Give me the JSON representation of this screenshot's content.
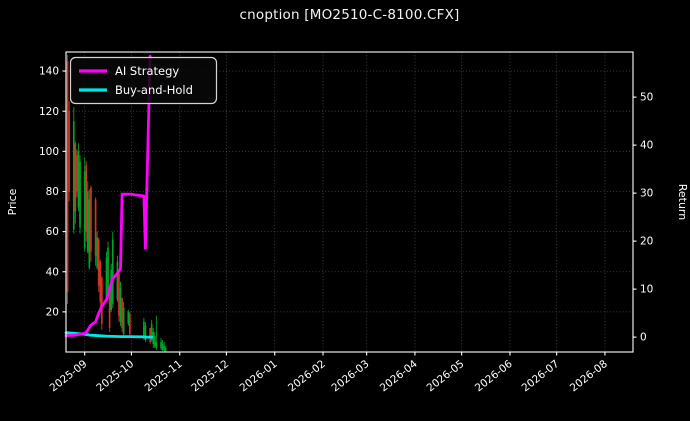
{
  "title": "cnoption [MO2510-C-8100.CFX]",
  "legend": {
    "items": [
      {
        "label": "AI Strategy",
        "color": "#ff00ff"
      },
      {
        "label": "Buy-and-Hold",
        "color": "#00e5e5"
      }
    ]
  },
  "colors": {
    "background": "#000000",
    "foreground": "#ffffff",
    "grid": "#4a4a4a",
    "candle_up": "#00a42b",
    "candle_down": "#cd3626",
    "ai_strategy": "#ff00ff",
    "buy_and_hold": "#00e5e5",
    "legend_border": "#d4d4d4"
  },
  "chart_data": {
    "type": "mixed-candlestick-line",
    "title": "cnoption [MO2510-C-8100.CFX]",
    "x_axis": {
      "range": [
        "2025-08-20",
        "2026-08-19"
      ],
      "tick_labels": [
        "2025-09",
        "2025-10",
        "2025-11",
        "2025-12",
        "2026-01",
        "2026-02",
        "2026-03",
        "2026-04",
        "2026-05",
        "2026-06",
        "2026-07",
        "2026-08"
      ],
      "tick_dates": [
        "2025-09-01",
        "2025-10-01",
        "2025-11-01",
        "2025-12-01",
        "2026-01-01",
        "2026-02-01",
        "2026-03-01",
        "2026-04-01",
        "2026-05-01",
        "2026-06-01",
        "2026-07-01",
        "2026-08-01"
      ],
      "grid": true
    },
    "y_axis_left": {
      "label": "Price",
      "ticks": [
        20,
        40,
        60,
        80,
        100,
        120,
        140
      ],
      "range": [
        0,
        149.5
      ],
      "grid": true
    },
    "y_axis_right": {
      "label": "Return",
      "ticks": [
        0,
        10,
        20,
        30,
        40,
        50
      ],
      "range": [
        -3.1,
        59.4
      ],
      "grid": false
    },
    "legend_position": "upper left",
    "candles_ohlc": [
      [
        "2025-08-21",
        145,
        148,
        24,
        30
      ],
      [
        "2025-08-22",
        120,
        125,
        75,
        80
      ],
      [
        "2025-08-25",
        61,
        122,
        59,
        115
      ],
      [
        "2025-08-26",
        104,
        105,
        64,
        70
      ],
      [
        "2025-08-27",
        98,
        101,
        77,
        80
      ],
      [
        "2025-08-28",
        72,
        104,
        70,
        100
      ],
      [
        "2025-08-29",
        62,
        98,
        59,
        95
      ],
      [
        "2025-09-01",
        52,
        97,
        50,
        90
      ],
      [
        "2025-09-02",
        93,
        95,
        55,
        60
      ],
      [
        "2025-09-03",
        50,
        85,
        49,
        80
      ],
      [
        "2025-09-04",
        42,
        81,
        41,
        76
      ],
      [
        "2025-09-05",
        82,
        83,
        45,
        50
      ],
      [
        "2025-09-08",
        76,
        77,
        43,
        48
      ],
      [
        "2025-09-09",
        42,
        60,
        41,
        57
      ],
      [
        "2025-09-10",
        56,
        57,
        30,
        33
      ],
      [
        "2025-09-11",
        45,
        46,
        22,
        25
      ],
      [
        "2025-09-12",
        37,
        38,
        11,
        14
      ],
      [
        "2025-09-15",
        26,
        50,
        25,
        47
      ],
      [
        "2025-09-16",
        29,
        55,
        27,
        52
      ],
      [
        "2025-09-17",
        30,
        31,
        10,
        12
      ],
      [
        "2025-09-18",
        21,
        44,
        20,
        41
      ],
      [
        "2025-09-19",
        24,
        60,
        22,
        56
      ],
      [
        "2025-09-22",
        26,
        48,
        25,
        45
      ],
      [
        "2025-09-23",
        39,
        40,
        15,
        18
      ],
      [
        "2025-09-24",
        15,
        35,
        13,
        32
      ],
      [
        "2025-09-25",
        27,
        27,
        10,
        12
      ],
      [
        "2025-09-26",
        9,
        25,
        7,
        22
      ],
      [
        "2025-09-29",
        14,
        21,
        13,
        20
      ],
      [
        "2025-09-30",
        19,
        20,
        7,
        9
      ],
      [
        "2025-10-09",
        7,
        17,
        6,
        15
      ],
      [
        "2025-10-10",
        6,
        15,
        5,
        13
      ],
      [
        "2025-10-13",
        12,
        12,
        4,
        5
      ],
      [
        "2025-10-14",
        6,
        16,
        5,
        14
      ],
      [
        "2025-10-15",
        4,
        12,
        2,
        10
      ],
      [
        "2025-10-16",
        3,
        10,
        2,
        8
      ],
      [
        "2025-10-17",
        2,
        18,
        1,
        5
      ],
      [
        "2025-10-20",
        2,
        7,
        1,
        5
      ],
      [
        "2025-10-21",
        1,
        6,
        0.5,
        4
      ],
      [
        "2025-10-22",
        1,
        5,
        0.3,
        3
      ],
      [
        "2025-10-23",
        0.5,
        3,
        0.2,
        2
      ]
    ],
    "series": [
      {
        "name": "AI Strategy",
        "axis": "return",
        "points": [
          [
            "2025-08-20",
            0.3
          ],
          [
            "2025-08-21",
            0.3
          ],
          [
            "2025-08-22",
            0.35
          ],
          [
            "2025-08-25",
            0.4
          ],
          [
            "2025-08-26",
            0.45
          ],
          [
            "2025-08-27",
            0.5
          ],
          [
            "2025-08-28",
            0.55
          ],
          [
            "2025-08-29",
            0.6
          ],
          [
            "2025-09-01",
            0.8
          ],
          [
            "2025-09-02",
            1.0
          ],
          [
            "2025-09-03",
            1.5
          ],
          [
            "2025-09-04",
            2.0
          ],
          [
            "2025-09-05",
            2.5
          ],
          [
            "2025-09-08",
            3.2
          ],
          [
            "2025-09-09",
            4.1
          ],
          [
            "2025-09-10",
            5.0
          ],
          [
            "2025-09-11",
            5.7
          ],
          [
            "2025-09-12",
            6.4
          ],
          [
            "2025-09-15",
            7.8
          ],
          [
            "2025-09-16",
            8.9
          ],
          [
            "2025-09-17",
            10.1
          ],
          [
            "2025-09-18",
            11.3
          ],
          [
            "2025-09-19",
            12.2
          ],
          [
            "2025-09-22",
            13.3
          ],
          [
            "2025-09-23",
            13.8
          ],
          [
            "2025-09-24",
            14.3
          ],
          [
            "2025-09-25",
            29.8
          ],
          [
            "2025-09-26",
            29.8
          ],
          [
            "2025-09-29",
            29.8
          ],
          [
            "2025-09-30",
            29.8
          ],
          [
            "2025-10-09",
            29.4
          ],
          [
            "2025-10-10",
            18.5
          ],
          [
            "2025-10-13",
            58.5
          ]
        ]
      },
      {
        "name": "Buy-and-Hold",
        "axis": "return",
        "points": [
          [
            "2025-08-20",
            0.9
          ],
          [
            "2025-08-21",
            0.9
          ],
          [
            "2025-08-25",
            0.8
          ],
          [
            "2025-09-01",
            0.6
          ],
          [
            "2025-09-05",
            0.4
          ],
          [
            "2025-09-10",
            0.3
          ],
          [
            "2025-09-15",
            0.2
          ],
          [
            "2025-09-19",
            0.15
          ],
          [
            "2025-09-24",
            0.1
          ],
          [
            "2025-09-30",
            0.1
          ],
          [
            "2025-10-09",
            0.05
          ],
          [
            "2025-10-10",
            0.0
          ],
          [
            "2025-10-13",
            0.0
          ],
          [
            "2025-10-14",
            0.0
          ]
        ]
      }
    ]
  }
}
